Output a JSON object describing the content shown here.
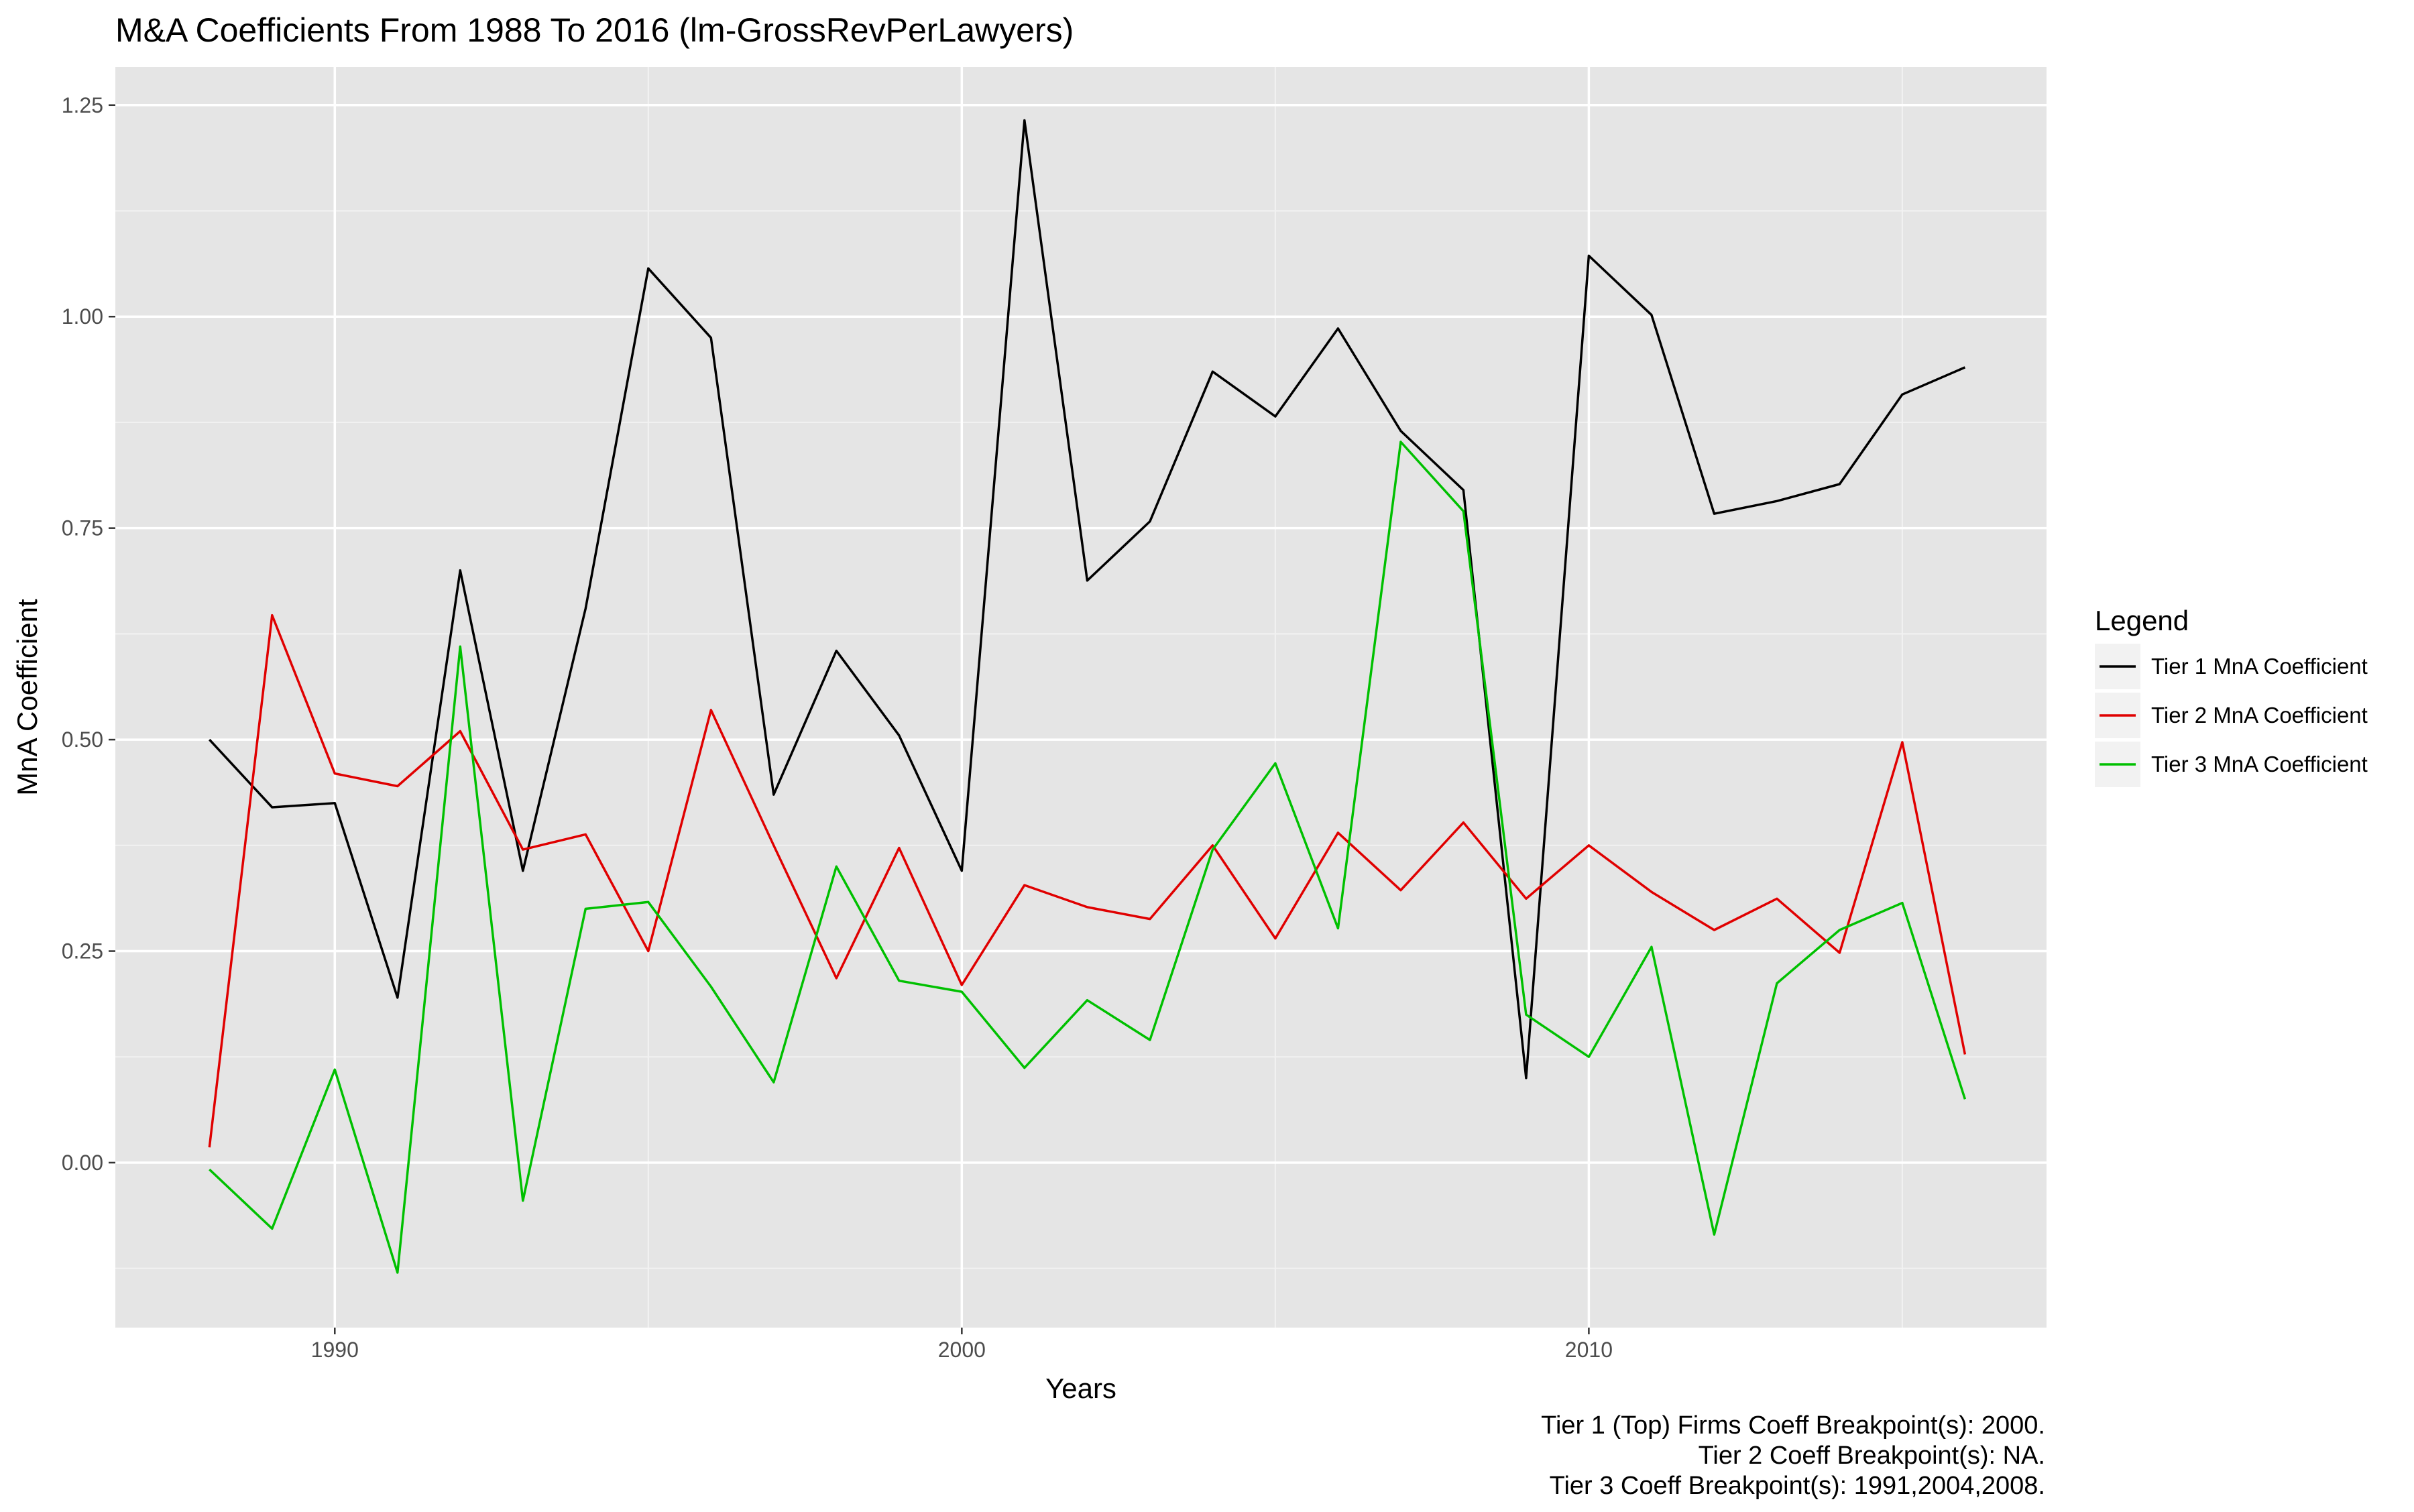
{
  "chart_data": {
    "type": "line",
    "title": "M&A Coefficients From 1988 To 2016 (lm-GrossRevPerLawyers)",
    "xlabel": "Years",
    "ylabel": "MnA Coefficient",
    "x_ticks": [
      1990,
      2000,
      2010
    ],
    "y_ticks": [
      "0.00",
      "0.25",
      "0.50",
      "0.75",
      "1.00",
      "1.25"
    ],
    "xlim": [
      1986.5,
      2017.3
    ],
    "ylim": [
      -0.195,
      1.295
    ],
    "grid": true,
    "legend": {
      "title": "Legend",
      "position": "right"
    },
    "x": [
      1988,
      1989,
      1990,
      1991,
      1992,
      1993,
      1994,
      1995,
      1996,
      1997,
      1998,
      1999,
      2000,
      2001,
      2002,
      2003,
      2004,
      2005,
      2006,
      2007,
      2008,
      2009,
      2010,
      2011,
      2012,
      2013,
      2014,
      2015,
      2016
    ],
    "series": [
      {
        "name": "Tier 1 MnA Coefficient",
        "color": "#000000",
        "values": [
          0.5,
          0.42,
          0.425,
          0.195,
          0.7,
          0.345,
          0.655,
          1.057,
          0.975,
          0.435,
          0.605,
          0.505,
          0.345,
          1.232,
          0.688,
          0.758,
          0.935,
          0.882,
          0.986,
          0.865,
          0.795,
          0.1,
          1.072,
          1.002,
          0.767,
          0.782,
          0.802,
          0.908,
          0.94
        ]
      },
      {
        "name": "Tier 2 MnA Coefficient",
        "color": "#e00000",
        "values": [
          0.018,
          0.647,
          0.46,
          0.445,
          0.51,
          0.37,
          0.388,
          0.25,
          0.535,
          0.375,
          0.218,
          0.372,
          0.21,
          0.328,
          0.302,
          0.288,
          0.375,
          0.265,
          0.39,
          0.322,
          0.402,
          0.312,
          0.375,
          0.32,
          0.275,
          0.312,
          0.248,
          0.497,
          0.128
        ]
      },
      {
        "name": "Tier 3 MnA Coefficient",
        "color": "#00c000",
        "values": [
          -0.008,
          -0.078,
          0.11,
          -0.13,
          0.61,
          -0.045,
          0.3,
          0.308,
          0.208,
          0.095,
          0.35,
          0.215,
          0.202,
          0.112,
          0.192,
          0.145,
          0.37,
          0.472,
          0.277,
          0.852,
          0.77,
          0.175,
          0.125,
          0.255,
          -0.085,
          0.212,
          0.275,
          0.307,
          0.075
        ]
      }
    ],
    "annotations": [
      "Tier 1 (Top) Firms Coeff Breakpoint(s): 2000.",
      "Tier 2 Coeff Breakpoint(s): NA.",
      "Tier 3 Coeff Breakpoint(s): 1991,2004,2008."
    ]
  }
}
